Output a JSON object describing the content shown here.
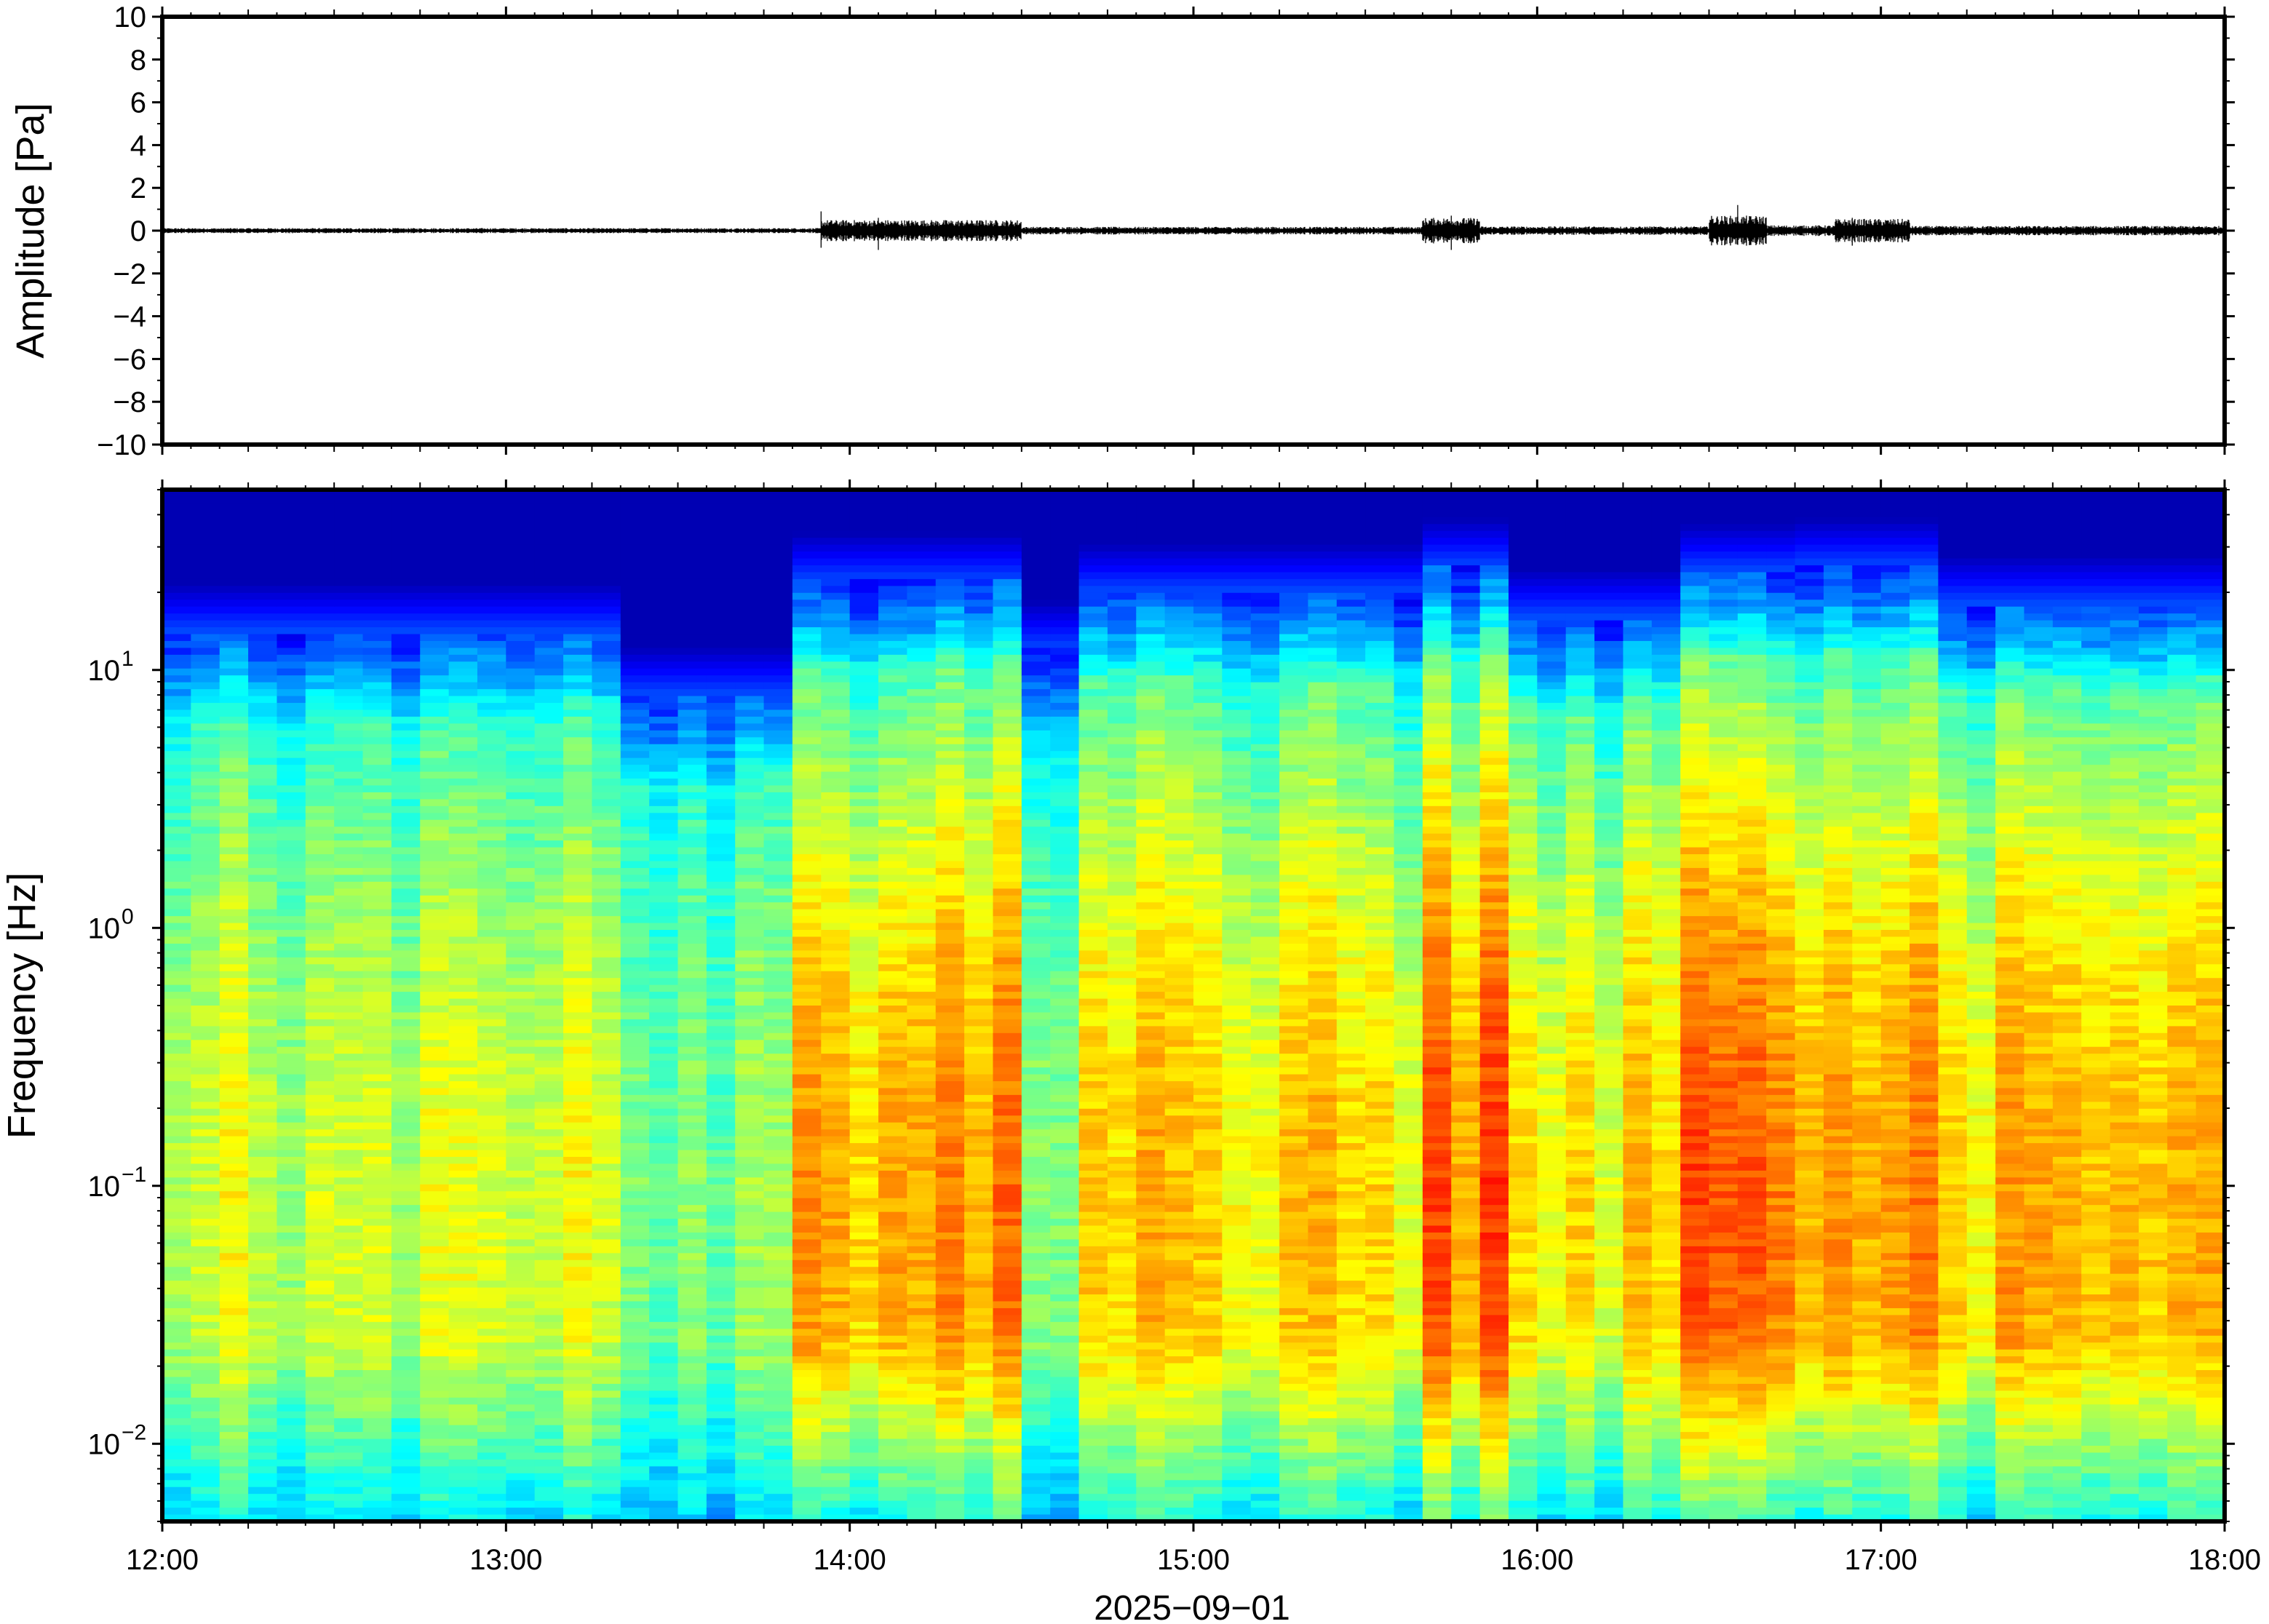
{
  "chart_data": [
    {
      "type": "line",
      "panel": "waveform",
      "ylabel": "Amplitude [Pa]",
      "ylim": [
        -10,
        10
      ],
      "y_ticks": [
        10,
        8,
        6,
        4,
        2,
        0,
        -2,
        -4,
        -6,
        -8,
        -10
      ],
      "y_tick_labels": [
        "10",
        "8",
        "6",
        "4",
        "2",
        "0",
        "−2",
        "−4",
        "−6",
        "−8",
        "−10"
      ],
      "x_range": [
        "12:00",
        "18:00"
      ],
      "line_color": "#000000",
      "baseline": 0,
      "noise_envelope": [
        {
          "from": "12:00",
          "to": "13:55",
          "amp": 0.12
        },
        {
          "from": "13:55",
          "to": "14:30",
          "amp": 0.5
        },
        {
          "from": "14:30",
          "to": "15:40",
          "amp": 0.18
        },
        {
          "from": "15:40",
          "to": "15:50",
          "amp": 0.6
        },
        {
          "from": "15:50",
          "to": "16:30",
          "amp": 0.2
        },
        {
          "from": "16:30",
          "to": "16:40",
          "amp": 0.7
        },
        {
          "from": "16:40",
          "to": "16:52",
          "amp": 0.25
        },
        {
          "from": "16:52",
          "to": "17:05",
          "amp": 0.55
        },
        {
          "from": "17:05",
          "to": "18:00",
          "amp": 0.22
        }
      ],
      "spikes": [
        {
          "t": "13:55",
          "min": -0.8,
          "max": 0.9
        },
        {
          "t": "14:05",
          "min": -0.9,
          "max": 0.6
        },
        {
          "t": "15:45",
          "min": -0.9,
          "max": 0.7
        },
        {
          "t": "16:35",
          "min": -0.6,
          "max": 1.2
        },
        {
          "t": "16:55",
          "min": -0.7,
          "max": 0.6
        }
      ]
    },
    {
      "type": "heatmap",
      "panel": "spectrogram",
      "ylabel": "Frequency [Hz]",
      "y_scale": "log",
      "ylim": [
        0.005,
        50
      ],
      "y_ticks": [
        0.01,
        0.1,
        1,
        10
      ],
      "y_tick_labels": [
        {
          "base": "10",
          "exp": "−2"
        },
        {
          "base": "10",
          "exp": "−1"
        },
        {
          "base": "10",
          "exp": "0"
        },
        {
          "base": "10",
          "exp": "1"
        }
      ],
      "x_ticks": [
        "12:00",
        "13:00",
        "14:00",
        "15:00",
        "16:00",
        "17:00",
        "18:00"
      ],
      "xlabel": "2025−09−01",
      "colormap": "jet",
      "column_energy_profile": [
        {
          "from": "12:00",
          "to": "13:20",
          "level": 0.35,
          "top_hz": 14
        },
        {
          "from": "13:20",
          "to": "13:52",
          "level": 0.2,
          "top_hz": 8
        },
        {
          "from": "13:52",
          "to": "14:30",
          "level": 0.62,
          "top_hz": 22
        },
        {
          "from": "14:30",
          "to": "14:38",
          "level": 0.3,
          "top_hz": 12
        },
        {
          "from": "14:38",
          "to": "15:40",
          "level": 0.5,
          "top_hz": 20
        },
        {
          "from": "15:40",
          "to": "15:55",
          "level": 0.7,
          "top_hz": 25
        },
        {
          "from": "15:55",
          "to": "16:25",
          "level": 0.48,
          "top_hz": 16
        },
        {
          "from": "16:25",
          "to": "16:45",
          "level": 0.7,
          "top_hz": 24
        },
        {
          "from": "16:45",
          "to": "17:10",
          "level": 0.62,
          "top_hz": 25
        },
        {
          "from": "17:10",
          "to": "18:00",
          "level": 0.55,
          "top_hz": 18
        }
      ]
    }
  ]
}
